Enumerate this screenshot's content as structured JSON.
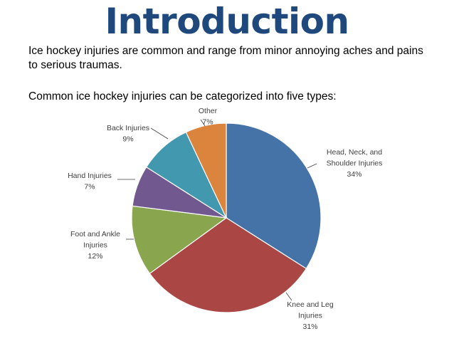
{
  "slide": {
    "title": "Introduction",
    "paragraph1": "Ice hockey injuries are common and range from minor annoying aches and pains to serious traumas.",
    "paragraph2": "Common ice hockey injuries can be categorized into five types:"
  },
  "chart_data": {
    "type": "pie",
    "title": "",
    "categories": [
      "Head, Neck, and Shoulder Injuries",
      "Knee and Leg Injuries",
      "Foot and Ankle Injuries",
      "Hand Injuries",
      "Back Injuries",
      "Other"
    ],
    "values": [
      34,
      31,
      12,
      7,
      9,
      7
    ],
    "value_labels": [
      "34%",
      "31%",
      "12%",
      "7%",
      "9%",
      "7%"
    ],
    "label_lines": [
      [
        "Head, Neck, and",
        "Shoulder Injuries"
      ],
      [
        "Knee and Leg",
        "Injuries"
      ],
      [
        "Foot and Ankle",
        "Injuries"
      ],
      [
        "Hand Injuries"
      ],
      [
        "Back Injuries"
      ],
      [
        "Other"
      ]
    ],
    "colors": [
      "#4572A7",
      "#AA4643",
      "#89A54E",
      "#71588F",
      "#4198AF",
      "#DB843D"
    ],
    "legend": "none",
    "start": "12 o'clock, clockwise"
  }
}
